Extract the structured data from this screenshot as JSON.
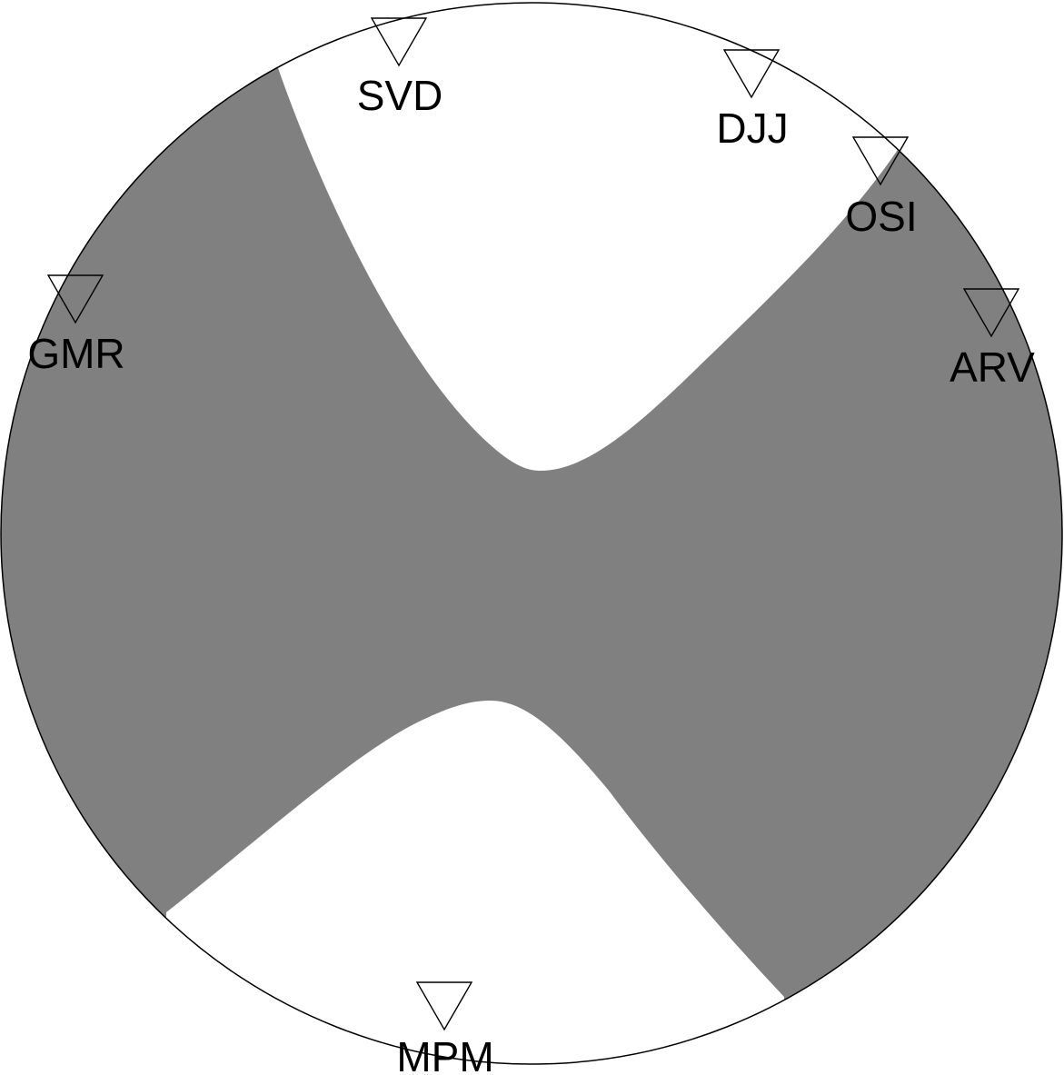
{
  "colors": {
    "compressional": "#808080",
    "dilatational": "#ffffff",
    "outline": "#000000"
  },
  "marker_icon": "inverted-triangle-icon",
  "stations": [
    {
      "code": "SVD"
    },
    {
      "code": "DJJ"
    },
    {
      "code": "OSI"
    },
    {
      "code": "GMR"
    },
    {
      "code": "ARV"
    },
    {
      "code": "MPM"
    }
  ]
}
